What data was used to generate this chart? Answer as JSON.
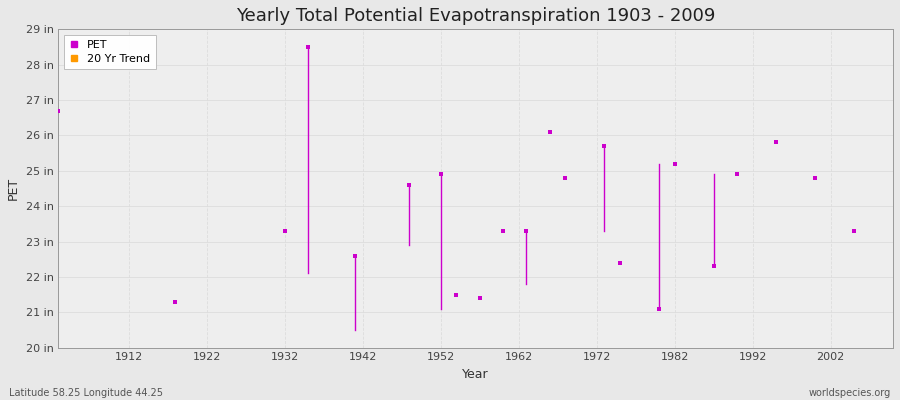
{
  "title": "Yearly Total Potential Evapotranspiration 1903 - 2009",
  "xlabel": "Year",
  "ylabel": "PET",
  "bg_color": "#e8e8e8",
  "plot_bg_color": "#eeeeee",
  "grid_color_h": "#dddddd",
  "grid_color_v": "#dddddd",
  "pet_color": "#cc00cc",
  "trend_color": "#ff9900",
  "ylim": [
    20,
    29
  ],
  "xlim": [
    1903,
    2010
  ],
  "yticks": [
    20,
    21,
    22,
    23,
    24,
    25,
    26,
    27,
    28,
    29
  ],
  "ytick_labels": [
    "20 in",
    "21 in",
    "22 in",
    "23 in",
    "24 in",
    "25 in",
    "26 in",
    "27 in",
    "28 in",
    "29 in"
  ],
  "xticks": [
    1912,
    1922,
    1932,
    1942,
    1952,
    1962,
    1972,
    1982,
    1992,
    2002
  ],
  "pet_scatter": [
    [
      1903,
      26.7
    ],
    [
      1918,
      21.3
    ],
    [
      1932,
      23.3
    ],
    [
      1935,
      28.5
    ],
    [
      1941,
      22.6
    ],
    [
      1948,
      24.6
    ],
    [
      1952,
      24.9
    ],
    [
      1954,
      21.5
    ],
    [
      1957,
      21.4
    ],
    [
      1960,
      23.3
    ],
    [
      1963,
      23.3
    ],
    [
      1966,
      26.1
    ],
    [
      1968,
      24.8
    ],
    [
      1973,
      25.7
    ],
    [
      1975,
      22.4
    ],
    [
      1980,
      21.1
    ],
    [
      1982,
      25.2
    ],
    [
      1987,
      22.3
    ],
    [
      1990,
      24.9
    ],
    [
      1995,
      25.8
    ],
    [
      2000,
      24.8
    ],
    [
      2005,
      23.3
    ]
  ],
  "pet_lines": [
    [
      1935,
      22.1,
      28.5
    ],
    [
      1941,
      20.5,
      22.6
    ],
    [
      1948,
      22.9,
      24.6
    ],
    [
      1952,
      21.1,
      24.9
    ],
    [
      1963,
      21.8,
      23.3
    ],
    [
      1973,
      23.3,
      25.7
    ],
    [
      1980,
      21.1,
      25.2
    ],
    [
      1987,
      22.3,
      24.9
    ]
  ],
  "footnote_left": "Latitude 58.25 Longitude 44.25",
  "footnote_right": "worldspecies.org",
  "title_fontsize": 13,
  "tick_fontsize": 8,
  "label_fontsize": 9,
  "legend_fontsize": 8
}
